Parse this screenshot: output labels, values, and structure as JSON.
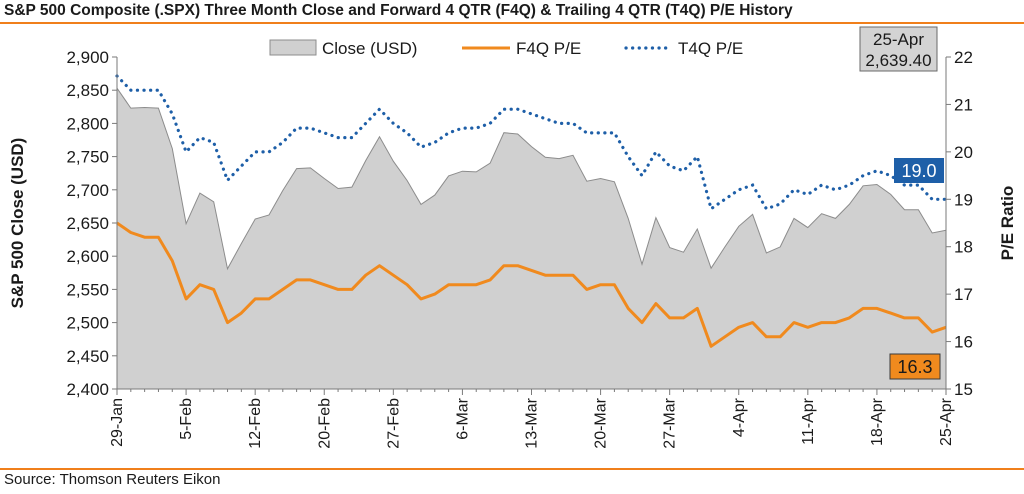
{
  "title": "S&P 500 Composite (.SPX) Three Month Close and Forward 4 QTR (F4Q) & Trailing 4 QTR (T4Q) P/E History",
  "source": "Source: Thomson Reuters Eikon",
  "colors": {
    "close_fill": "#d0d0d0",
    "close_stroke": "#8c8c8c",
    "f4q": "#f08a1e",
    "t4q": "#1e5fa8",
    "t4q_label_bg": "#1e5fa8",
    "f4q_label_bg": "#f08a1e",
    "rule": "#f07f1b"
  },
  "chart_data": {
    "type": "area",
    "ylabel_left": "S&P 500 Close (USD)",
    "ylabel_right": "P/E Ratio",
    "ylim_left": [
      2400,
      2900
    ],
    "yticks_left": [
      "2,400",
      "2,450",
      "2,500",
      "2,550",
      "2,600",
      "2,650",
      "2,700",
      "2,750",
      "2,800",
      "2,850",
      "2,900"
    ],
    "ylim_right": [
      15,
      22
    ],
    "yticks_right": [
      "15",
      "16",
      "17",
      "18",
      "19",
      "20",
      "21",
      "22"
    ],
    "xtick_labels": [
      "29-Jan",
      "5-Feb",
      "12-Feb",
      "20-Feb",
      "27-Feb",
      "6-Mar",
      "13-Mar",
      "20-Mar",
      "27-Mar",
      "4-Apr",
      "11-Apr",
      "18-Apr",
      "25-Apr"
    ],
    "legend": [
      "Close (USD)",
      "F4Q P/E",
      "T4Q P/E"
    ],
    "legend_position": "top",
    "annotation_date": "25-Apr",
    "annotation_close": "2,639.40",
    "t4q_end_label": "19.0",
    "f4q_end_label": "16.3",
    "series": [
      {
        "name": "Close (USD)",
        "axis": "left",
        "values": [
          2853,
          2823,
          2824,
          2823,
          2762,
          2649,
          2695,
          2682,
          2581,
          2619,
          2656,
          2662,
          2699,
          2732,
          2733,
          2717,
          2702,
          2704,
          2744,
          2780,
          2743,
          2714,
          2678,
          2692,
          2721,
          2728,
          2727,
          2740,
          2786,
          2784,
          2765,
          2749,
          2747,
          2752,
          2713,
          2717,
          2712,
          2657,
          2588,
          2658,
          2613,
          2606,
          2641,
          2582,
          2614,
          2645,
          2663,
          2605,
          2614,
          2657,
          2643,
          2664,
          2657,
          2678,
          2706,
          2708,
          2693,
          2670,
          2670,
          2635,
          2639
        ]
      },
      {
        "name": "F4Q P/E",
        "axis": "right",
        "values": [
          18.5,
          18.3,
          18.2,
          18.2,
          17.7,
          16.9,
          17.2,
          17.1,
          16.4,
          16.6,
          16.9,
          16.9,
          17.1,
          17.3,
          17.3,
          17.2,
          17.1,
          17.1,
          17.4,
          17.6,
          17.4,
          17.2,
          16.9,
          17.0,
          17.2,
          17.2,
          17.2,
          17.3,
          17.6,
          17.6,
          17.5,
          17.4,
          17.4,
          17.4,
          17.1,
          17.2,
          17.2,
          16.7,
          16.4,
          16.8,
          16.5,
          16.5,
          16.7,
          15.9,
          16.1,
          16.3,
          16.4,
          16.1,
          16.1,
          16.4,
          16.3,
          16.4,
          16.4,
          16.5,
          16.7,
          16.7,
          16.6,
          16.5,
          16.5,
          16.2,
          16.3
        ]
      },
      {
        "name": "T4Q P/E",
        "axis": "right",
        "values": [
          21.6,
          21.3,
          21.3,
          21.3,
          20.8,
          20.0,
          20.3,
          20.2,
          19.4,
          19.7,
          20.0,
          20.0,
          20.2,
          20.5,
          20.5,
          20.4,
          20.3,
          20.3,
          20.6,
          20.9,
          20.6,
          20.4,
          20.1,
          20.2,
          20.4,
          20.5,
          20.5,
          20.6,
          20.9,
          20.9,
          20.8,
          20.7,
          20.6,
          20.6,
          20.4,
          20.4,
          20.4,
          19.9,
          19.5,
          20.0,
          19.7,
          19.6,
          19.9,
          18.8,
          19.0,
          19.2,
          19.3,
          18.8,
          18.9,
          19.2,
          19.1,
          19.3,
          19.2,
          19.3,
          19.5,
          19.6,
          19.5,
          19.3,
          19.3,
          19.0,
          19.0
        ]
      }
    ]
  }
}
